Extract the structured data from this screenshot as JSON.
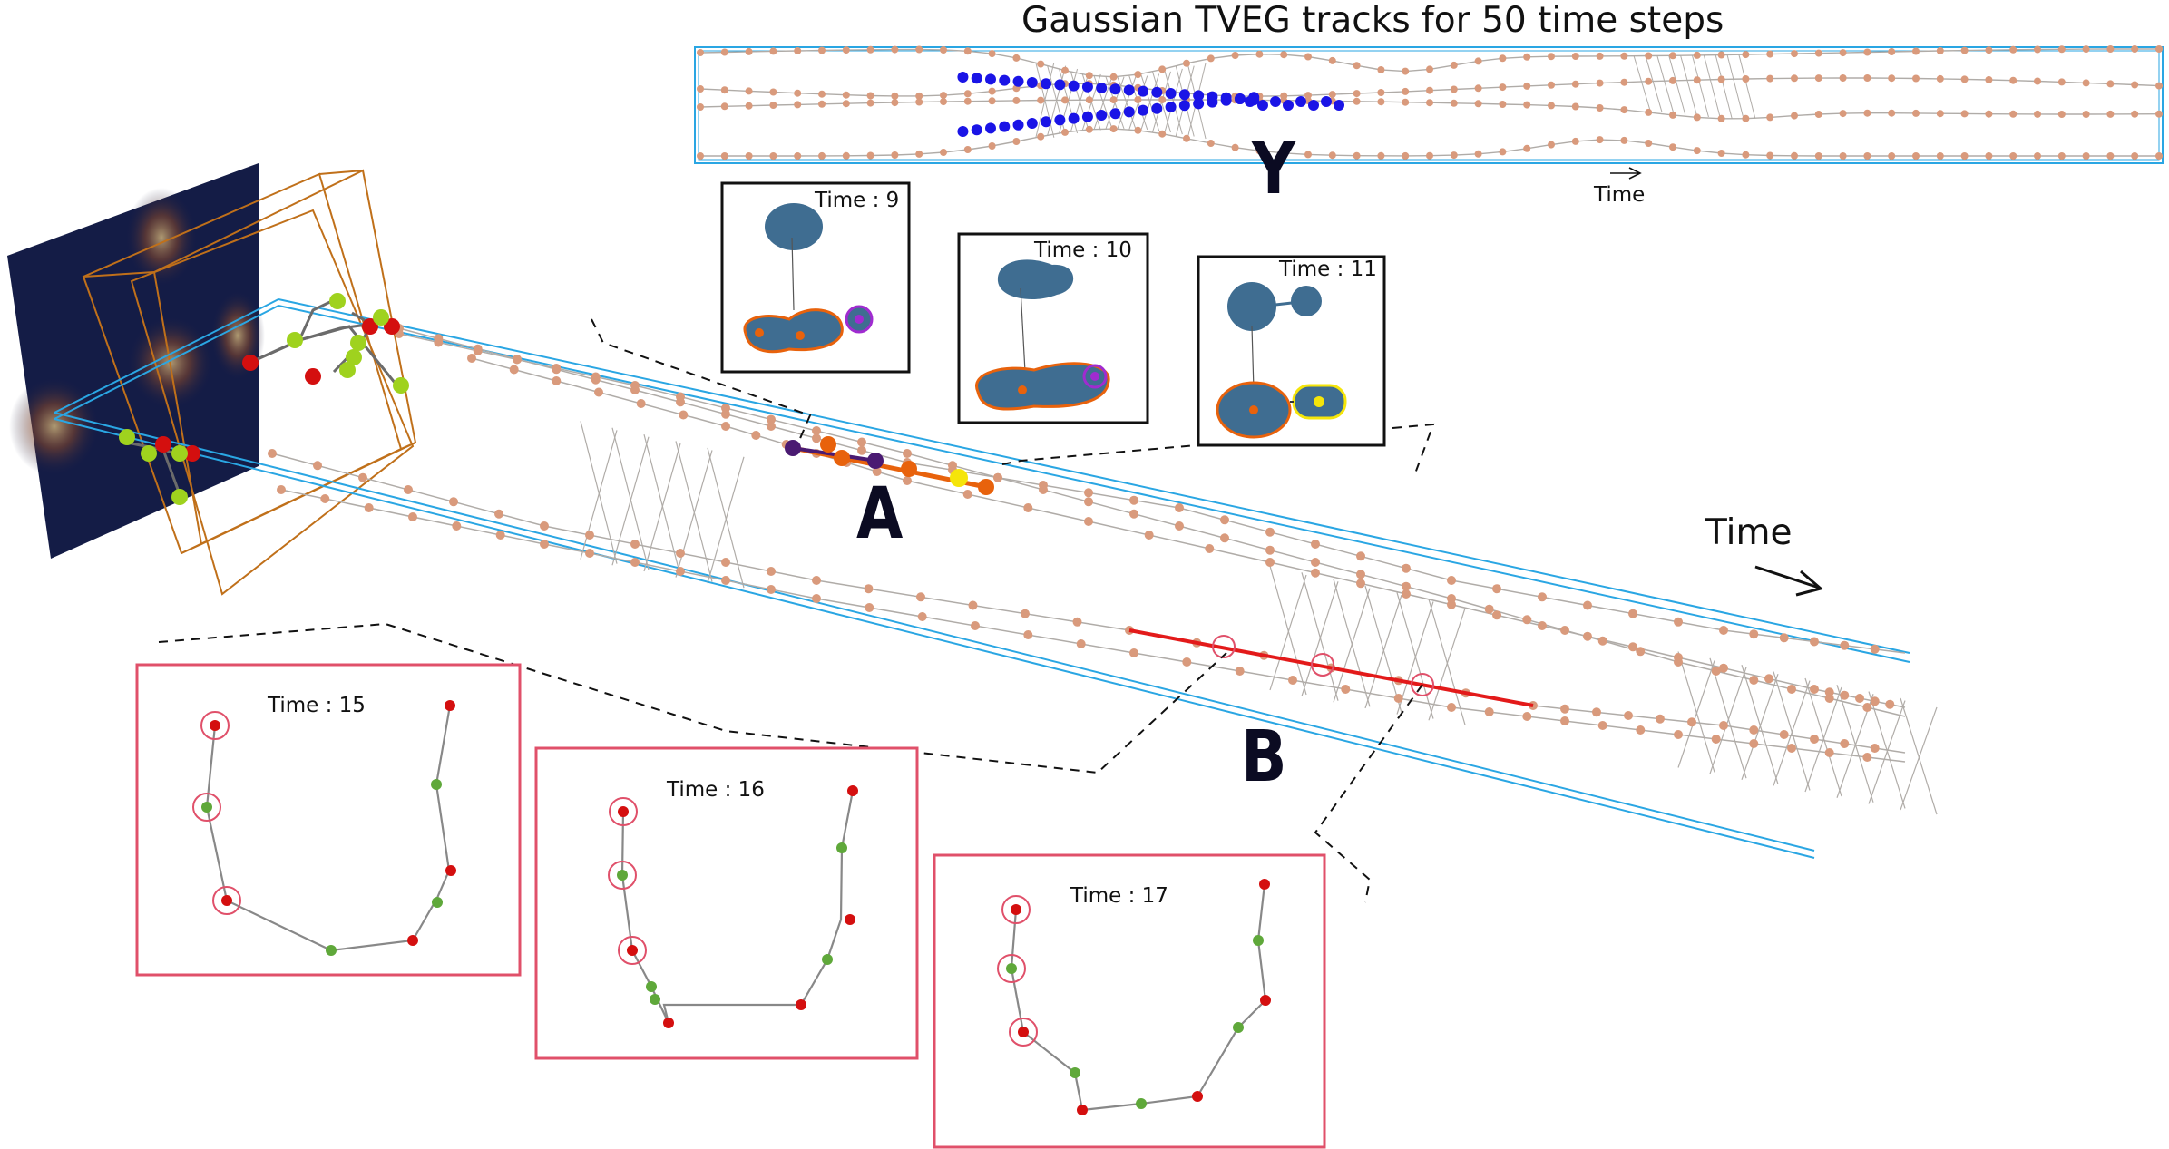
{
  "title": "Gaussian TVEG tracks for 50 time steps",
  "labels": {
    "y": "Y",
    "a": "A",
    "b": "B",
    "time_small": "Time",
    "time_large": "Time"
  },
  "insets_blob": [
    {
      "label": "Time : 9"
    },
    {
      "label": "Time : 10"
    },
    {
      "label": "Time : 11"
    }
  ],
  "insets_graph": [
    {
      "label": "Time : 15"
    },
    {
      "label": "Time : 16"
    },
    {
      "label": "Time : 17"
    }
  ],
  "colors": {
    "track_node": "#d99a7c",
    "track_edge": "#b0aca8",
    "box_blue": "#2aa6e3",
    "highlight_blue": "#1a14e6",
    "orange": "#e8620c",
    "purple": "#4a1a72",
    "yellow": "#f5e50a",
    "red_track": "#e31a1a",
    "pink_frame": "#e0506a",
    "blob": "#3f6d91",
    "navy_panel": "#141c46",
    "brown_box": "#c0701a",
    "green_node": "#9fd21e",
    "red_node": "#d40f0f"
  }
}
